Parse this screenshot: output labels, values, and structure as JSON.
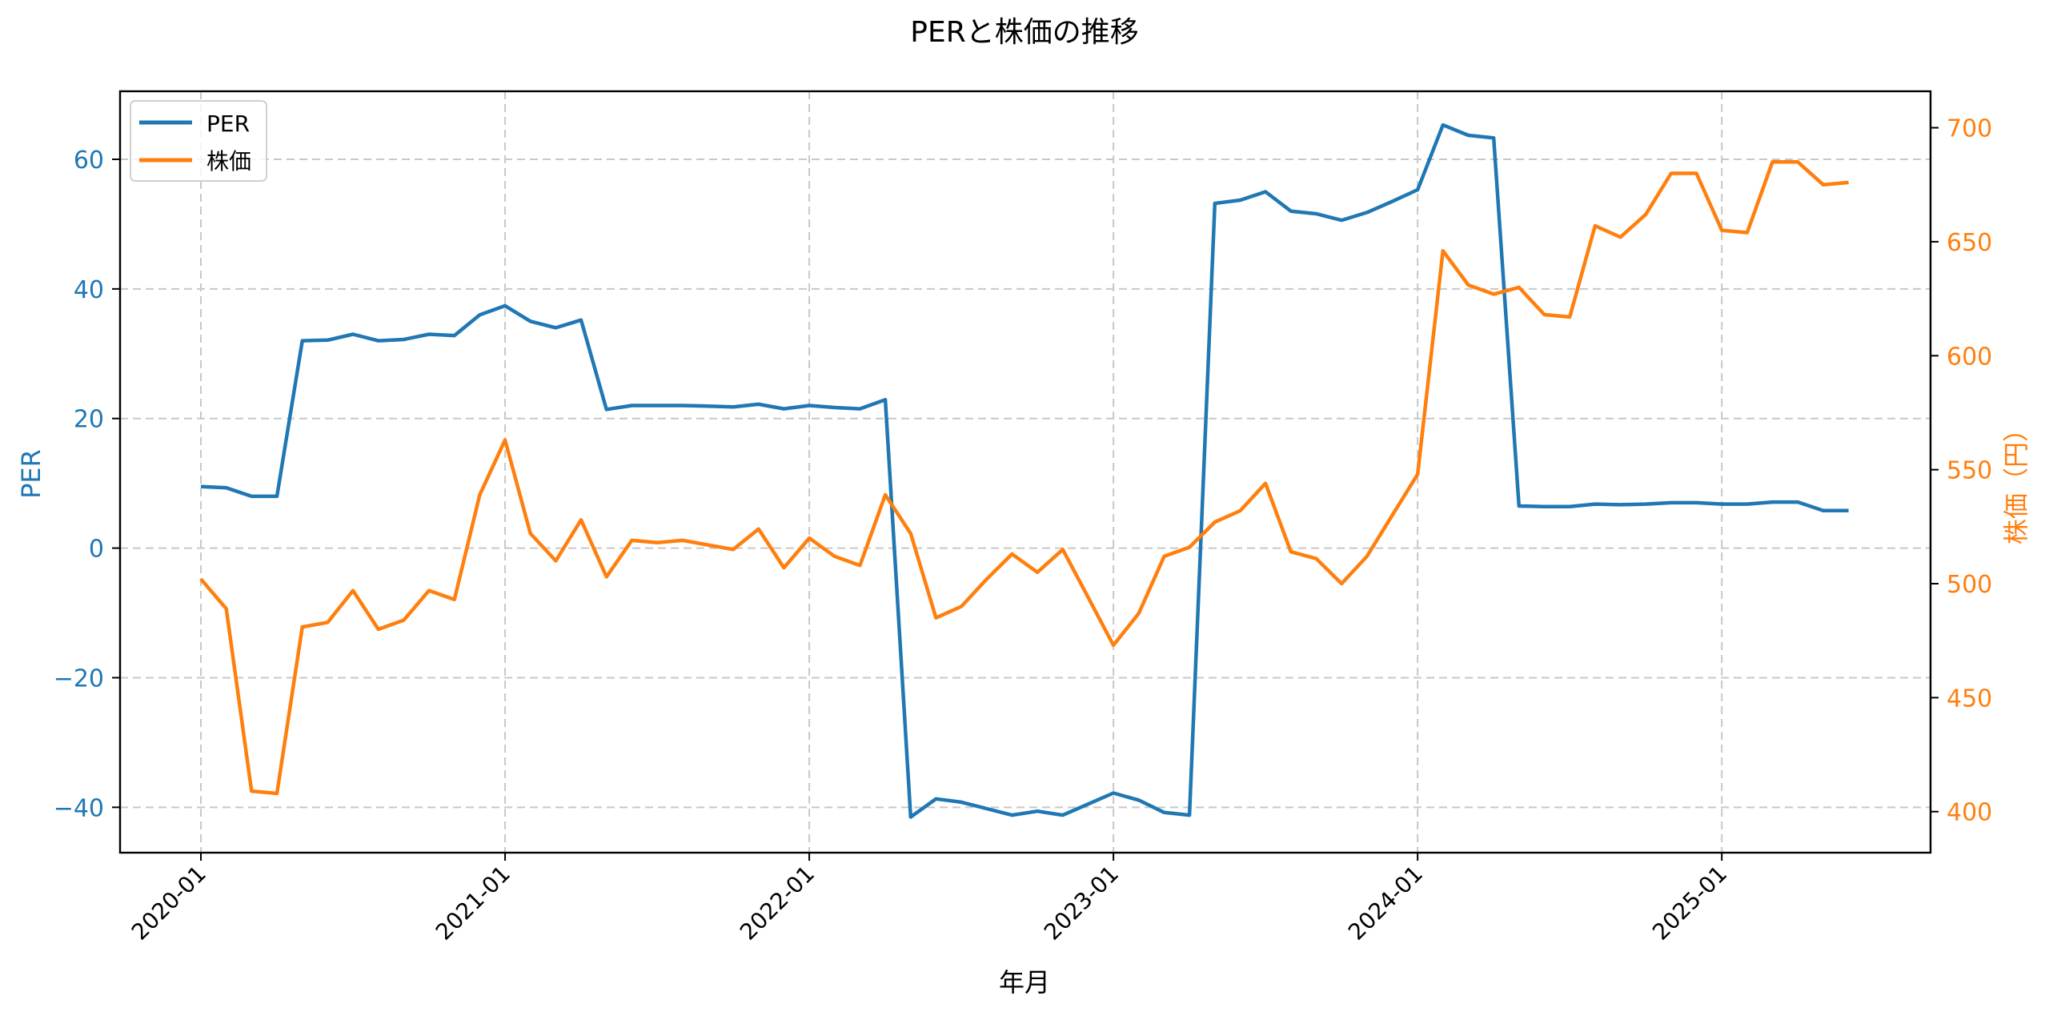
{
  "chart_data": {
    "type": "line",
    "title": "PERと株価の推移",
    "xlabel": "年月",
    "ylabel": "PER",
    "ylabel_right": "株価（円）",
    "x_ticks": [
      "2020-01",
      "2021-01",
      "2022-01",
      "2023-01",
      "2024-01",
      "2025-01"
    ],
    "y_ticks_left": [
      -40,
      -20,
      0,
      20,
      40,
      60
    ],
    "y_ticks_right": [
      400,
      450,
      500,
      550,
      600,
      650,
      700
    ],
    "ylim_left": [
      -47,
      70.5
    ],
    "ylim_right": [
      382,
      716
    ],
    "grid": true,
    "legend_position": "upper left",
    "x_start": "2020-01",
    "x_freq": "monthly",
    "series": [
      {
        "name": "PER",
        "axis": "left",
        "color": "#1f77b4",
        "values": [
          9.5,
          9.3,
          8.0,
          8.0,
          32.0,
          32.1,
          33.0,
          32.0,
          32.2,
          33.0,
          32.8,
          36.0,
          37.4,
          35.0,
          34.0,
          35.2,
          21.4,
          22.0,
          22.0,
          22.0,
          21.9,
          21.8,
          22.2,
          21.5,
          22.0,
          21.7,
          21.5,
          22.9,
          -41.5,
          -38.7,
          -39.2,
          -40.2,
          -41.2,
          -40.6,
          -41.2,
          -39.5,
          -37.8,
          -38.9,
          -40.8,
          -41.2,
          53.2,
          53.7,
          55.0,
          52.0,
          51.6,
          50.6,
          51.8,
          53.5,
          55.3,
          65.3,
          63.7,
          63.3,
          6.5,
          6.4,
          6.4,
          6.8,
          6.7,
          6.8,
          7.0,
          7.0,
          6.8,
          6.8,
          7.1,
          7.1,
          5.8,
          5.8
        ]
      },
      {
        "name": "株価",
        "axis": "right",
        "color": "#ff7f0e",
        "values": [
          502,
          489,
          409,
          408,
          481,
          483,
          497,
          480,
          484,
          497,
          493,
          539,
          563,
          522,
          510,
          528,
          503,
          519,
          518,
          519,
          517,
          515,
          524,
          507,
          520,
          512,
          508,
          539,
          522,
          485,
          490,
          502,
          513,
          505,
          515,
          494,
          473,
          487,
          512,
          516,
          527,
          532,
          544,
          514,
          511,
          500,
          512,
          530,
          548,
          646,
          631,
          627,
          630,
          618,
          617,
          657,
          652,
          662,
          680,
          680,
          655,
          654,
          685,
          685,
          675,
          676
        ]
      }
    ]
  },
  "legend": {
    "items": [
      {
        "label": "PER"
      },
      {
        "label": "株価"
      }
    ]
  }
}
